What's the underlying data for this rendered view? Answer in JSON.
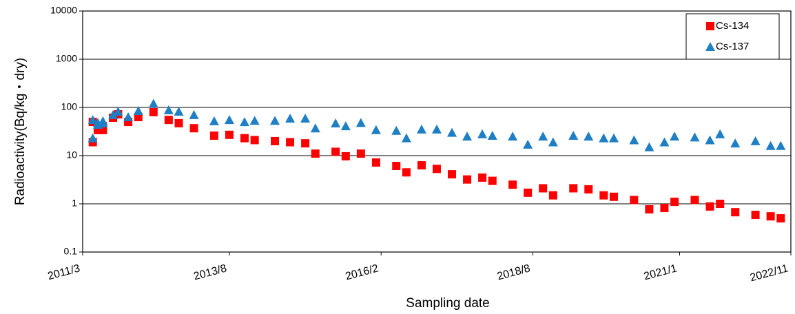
{
  "chart_data": {
    "type": "scatter",
    "x_label": "Sampling date",
    "y_label": "Radioactivity(Bq/kg・dry)",
    "log_y": true,
    "grid": true,
    "legend": "upper right",
    "x": [
      "2011/5",
      "2011/5",
      "2011/6",
      "2011/6",
      "2011/7",
      "2011/7",
      "2011/9",
      "2011/10",
      "2011/12",
      "2012/2",
      "2012/5",
      "2012/8",
      "2012/10",
      "2013/1",
      "2013/5",
      "2013/8",
      "2013/11",
      "2014/1",
      "2014/5",
      "2014/8",
      "2014/11",
      "2015/1",
      "2015/5",
      "2015/7",
      "2015/10",
      "2016/1",
      "2016/5",
      "2016/7",
      "2016/10",
      "2017/1",
      "2017/4",
      "2017/7",
      "2017/10",
      "2017/12",
      "2018/4",
      "2018/7",
      "2018/10",
      "2018/12",
      "2019/4",
      "2019/7",
      "2019/10",
      "2019/12",
      "2020/4",
      "2020/7",
      "2020/10",
      "2020/12",
      "2021/4",
      "2021/7",
      "2021/9",
      "2021/12",
      "2022/4",
      "2022/7",
      "2022/9"
    ],
    "series": [
      {
        "name": "Cs-134",
        "color": "#ff0000",
        "marker": "square",
        "values": [
          19,
          50,
          37,
          34,
          34,
          41,
          61,
          72,
          50,
          63,
          80,
          55,
          47,
          37,
          26,
          27,
          23,
          21,
          20,
          19,
          18,
          11,
          12,
          9.7,
          11,
          7.2,
          6.1,
          4.5,
          6.3,
          5.3,
          4.1,
          3.2,
          3.5,
          3.0,
          2.5,
          1.7,
          2.1,
          1.5,
          2.1,
          2.0,
          1.5,
          1.4,
          1.2,
          0.77,
          0.82,
          1.1,
          1.2,
          0.88,
          1.0,
          0.67,
          0.59,
          0.55,
          0.5
        ]
      },
      {
        "name": "Cs-137",
        "color": "#1f7fc4",
        "marker": "triangle",
        "values": [
          23,
          55,
          48,
          44,
          47,
          52,
          70,
          82,
          63,
          85,
          120,
          88,
          82,
          70,
          52,
          55,
          50,
          53,
          53,
          59,
          59,
          37,
          47,
          41,
          48,
          34,
          33,
          23,
          35,
          35,
          30,
          25,
          28,
          26,
          25,
          17,
          25,
          19,
          26,
          25,
          23,
          23,
          21,
          15,
          19,
          25,
          24,
          21,
          28,
          18,
          20,
          16,
          16
        ]
      }
    ],
    "xlim": [
      "2011/3",
      "2022/11"
    ],
    "xticks": [
      "2011/3",
      "2013/8",
      "2016/2",
      "2018/8",
      "2021/1",
      "2022/11"
    ],
    "ylim": [
      0.1,
      10000
    ],
    "yticks": [
      0.1,
      1,
      10,
      100,
      1000,
      10000
    ]
  }
}
